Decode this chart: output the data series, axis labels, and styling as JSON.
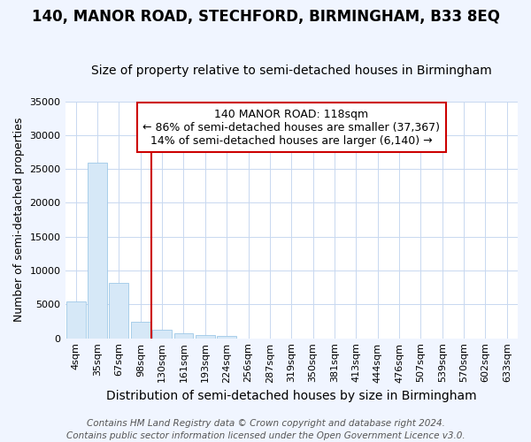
{
  "title": "140, MANOR ROAD, STECHFORD, BIRMINGHAM, B33 8EQ",
  "subtitle": "Size of property relative to semi-detached houses in Birmingham",
  "xlabel": "Distribution of semi-detached houses by size in Birmingham",
  "ylabel": "Number of semi-detached properties",
  "categories": [
    "4sqm",
    "35sqm",
    "67sqm",
    "98sqm",
    "130sqm",
    "161sqm",
    "193sqm",
    "224sqm",
    "256sqm",
    "287sqm",
    "319sqm",
    "350sqm",
    "381sqm",
    "413sqm",
    "444sqm",
    "476sqm",
    "507sqm",
    "539sqm",
    "570sqm",
    "602sqm",
    "633sqm"
  ],
  "values": [
    5400,
    26000,
    8200,
    2400,
    1200,
    700,
    450,
    300,
    0,
    0,
    0,
    0,
    0,
    0,
    0,
    0,
    0,
    0,
    0,
    0,
    0
  ],
  "bar_color": "#d6e8f7",
  "bar_edgecolor": "#9ec8e8",
  "highlight_index": 4,
  "highlight_color": "#cc0000",
  "ylim": [
    0,
    35000
  ],
  "yticks": [
    0,
    5000,
    10000,
    15000,
    20000,
    25000,
    30000,
    35000
  ],
  "annotation_line1": "140 MANOR ROAD: 118sqm",
  "annotation_line2": "← 86% of semi-detached houses are smaller (37,367)",
  "annotation_line3": "14% of semi-detached houses are larger (6,140) →",
  "annotation_box_color": "#ffffff",
  "annotation_box_edgecolor": "#cc0000",
  "plot_bg_color": "#ffffff",
  "fig_bg_color": "#f0f5ff",
  "grid_color": "#c8d8f0",
  "title_fontsize": 12,
  "subtitle_fontsize": 10,
  "xlabel_fontsize": 10,
  "ylabel_fontsize": 9,
  "tick_fontsize": 8,
  "annotation_fontsize": 9,
  "footer_fontsize": 7.5,
  "footer_line1": "Contains HM Land Registry data © Crown copyright and database right 2024.",
  "footer_line2": "Contains public sector information licensed under the Open Government Licence v3.0."
}
